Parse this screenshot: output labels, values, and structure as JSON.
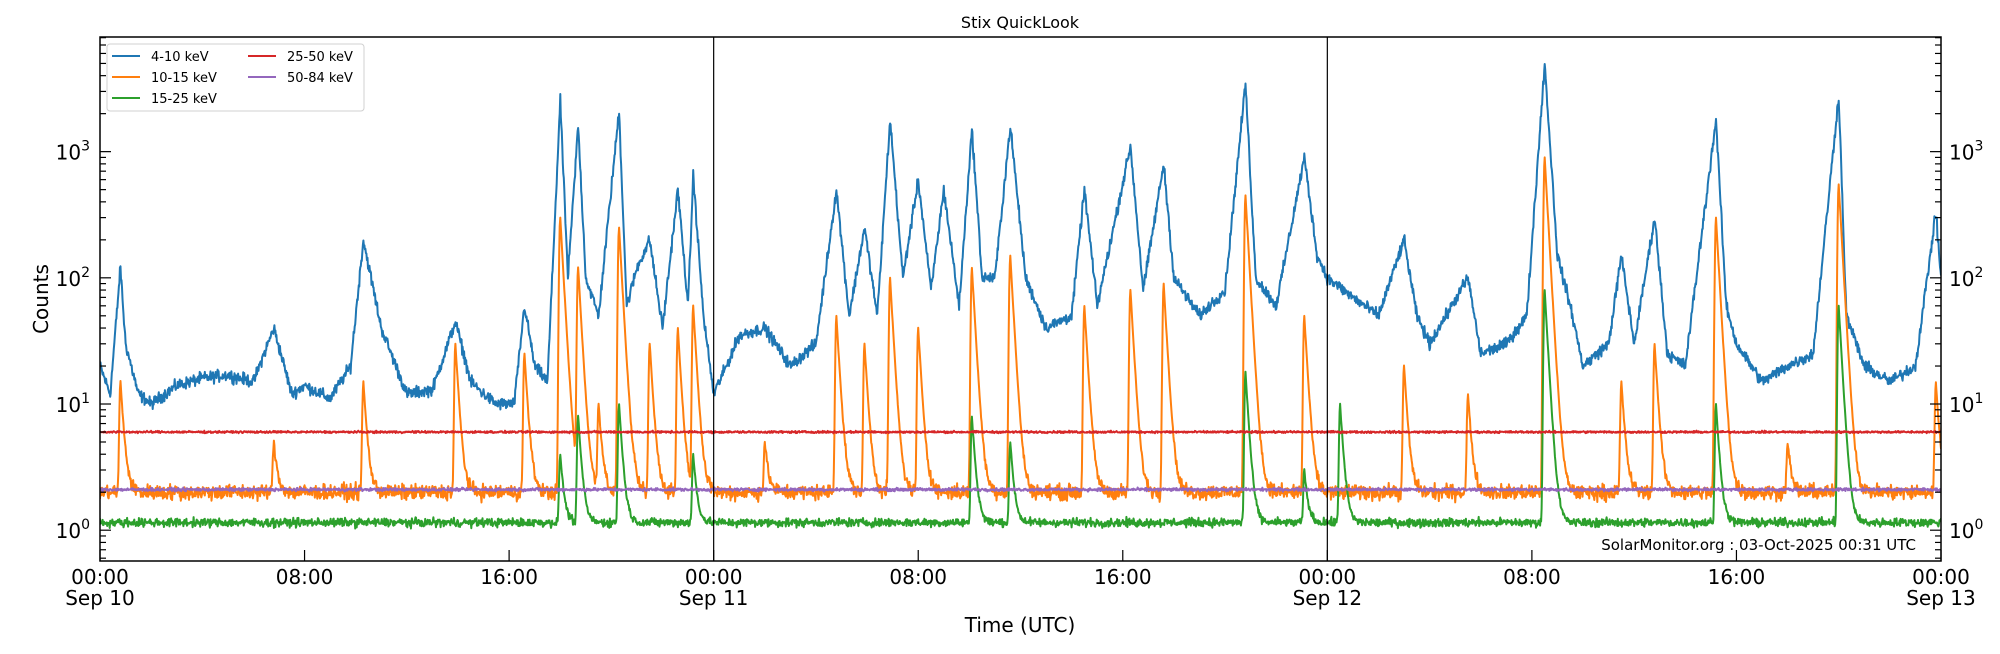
{
  "chart_data": {
    "type": "line",
    "title": "Stix QuickLook",
    "xlabel": "Time (UTC)",
    "ylabel": "Counts",
    "yscale": "log",
    "ylim": [
      0.57,
      8100
    ],
    "xlim_hours": [
      0,
      72
    ],
    "grid": false,
    "legend_placement": "top-left",
    "x_ticks": [
      {
        "hour": 0,
        "label": "00:00",
        "date": "Sep 10"
      },
      {
        "hour": 8,
        "label": "08:00",
        "date": ""
      },
      {
        "hour": 16,
        "label": "16:00",
        "date": ""
      },
      {
        "hour": 24,
        "label": "00:00",
        "date": "Sep 11"
      },
      {
        "hour": 32,
        "label": "08:00",
        "date": ""
      },
      {
        "hour": 40,
        "label": "16:00",
        "date": ""
      },
      {
        "hour": 48,
        "label": "00:00",
        "date": "Sep 12"
      },
      {
        "hour": 56,
        "label": "08:00",
        "date": ""
      },
      {
        "hour": 64,
        "label": "16:00",
        "date": ""
      },
      {
        "hour": 72,
        "label": "00:00",
        "date": "Sep 13"
      }
    ],
    "y_ticks": [
      {
        "value": 1,
        "base": "10",
        "exp": "0"
      },
      {
        "value": 10,
        "base": "10",
        "exp": "1"
      },
      {
        "value": 100,
        "base": "10",
        "exp": "2"
      },
      {
        "value": 1000,
        "base": "10",
        "exp": "3"
      }
    ],
    "day_boundaries_hours": [
      24,
      48
    ],
    "annotation": "SolarMonitor.org : 03-Oct-2025 00:31 UTC",
    "series": [
      {
        "name": "4-10 keV",
        "color": "#1f77b4",
        "points": [
          [
            0,
            20
          ],
          [
            0.4,
            12
          ],
          [
            0.8,
            120
          ],
          [
            1.0,
            30
          ],
          [
            1.5,
            12
          ],
          [
            2,
            10
          ],
          [
            3,
            14
          ],
          [
            4,
            16
          ],
          [
            5,
            17
          ],
          [
            6,
            15
          ],
          [
            6.8,
            40
          ],
          [
            7.5,
            12
          ],
          [
            8,
            14
          ],
          [
            9,
            11
          ],
          [
            9.8,
            20
          ],
          [
            10.3,
            200
          ],
          [
            11,
            40
          ],
          [
            12,
            12
          ],
          [
            13,
            13
          ],
          [
            13.9,
            45
          ],
          [
            14.5,
            15
          ],
          [
            15,
            12
          ],
          [
            15.5,
            10
          ],
          [
            16.2,
            10
          ],
          [
            16.6,
            60
          ],
          [
            17,
            20
          ],
          [
            17.5,
            15
          ],
          [
            18.0,
            2500
          ],
          [
            18.3,
            100
          ],
          [
            18.7,
            1600
          ],
          [
            19,
            100
          ],
          [
            19.5,
            50
          ],
          [
            20.3,
            2100
          ],
          [
            20.6,
            60
          ],
          [
            21,
            120
          ],
          [
            21.5,
            200
          ],
          [
            22,
            40
          ],
          [
            22.6,
            500
          ],
          [
            23,
            60
          ],
          [
            23.2,
            650
          ],
          [
            23.6,
            50
          ],
          [
            24,
            12
          ],
          [
            24.5,
            20
          ],
          [
            25,
            35
          ],
          [
            26,
            40
          ],
          [
            27,
            20
          ],
          [
            28,
            30
          ],
          [
            28.8,
            500
          ],
          [
            29.3,
            50
          ],
          [
            29.9,
            250
          ],
          [
            30.4,
            50
          ],
          [
            30.9,
            1800
          ],
          [
            31.4,
            100
          ],
          [
            32,
            600
          ],
          [
            32.5,
            80
          ],
          [
            33,
            500
          ],
          [
            33.6,
            60
          ],
          [
            34.1,
            1500
          ],
          [
            34.5,
            100
          ],
          [
            35,
            100
          ],
          [
            35.6,
            1600
          ],
          [
            36.2,
            100
          ],
          [
            37,
            40
          ],
          [
            38,
            50
          ],
          [
            38.5,
            500
          ],
          [
            39,
            60
          ],
          [
            40.3,
            1100
          ],
          [
            40.8,
            80
          ],
          [
            41.6,
            800
          ],
          [
            42,
            100
          ],
          [
            43,
            50
          ],
          [
            44,
            80
          ],
          [
            44.8,
            3500
          ],
          [
            45.2,
            100
          ],
          [
            46,
            60
          ],
          [
            47.1,
            900
          ],
          [
            47.6,
            150
          ],
          [
            48,
            100
          ],
          [
            49,
            70
          ],
          [
            50,
            50
          ],
          [
            51,
            200
          ],
          [
            51.5,
            50
          ],
          [
            52,
            30
          ],
          [
            53.5,
            100
          ],
          [
            54,
            25
          ],
          [
            55,
            30
          ],
          [
            55.8,
            50
          ],
          [
            56.5,
            5000
          ],
          [
            57,
            150
          ],
          [
            57.5,
            60
          ],
          [
            58,
            20
          ],
          [
            59,
            30
          ],
          [
            59.5,
            150
          ],
          [
            60,
            30
          ],
          [
            60.8,
            300
          ],
          [
            61.3,
            25
          ],
          [
            62,
            20
          ],
          [
            63.2,
            1800
          ],
          [
            63.6,
            60
          ],
          [
            64,
            30
          ],
          [
            65,
            15
          ],
          [
            66,
            20
          ],
          [
            67,
            25
          ],
          [
            68,
            2800
          ],
          [
            68.3,
            50
          ],
          [
            69,
            20
          ],
          [
            70,
            15
          ],
          [
            71,
            20
          ],
          [
            71.8,
            330
          ],
          [
            72,
            100
          ]
        ]
      },
      {
        "name": "10-15 keV",
        "color": "#ff7f0e",
        "baseline": 2.0,
        "peaks": [
          [
            0.8,
            15
          ],
          [
            6.8,
            5
          ],
          [
            10.3,
            15
          ],
          [
            13.9,
            30
          ],
          [
            16.6,
            25
          ],
          [
            18,
            300
          ],
          [
            18.7,
            120
          ],
          [
            19.5,
            10
          ],
          [
            20.3,
            250
          ],
          [
            21.5,
            30
          ],
          [
            22.6,
            40
          ],
          [
            23.2,
            60
          ],
          [
            26,
            5
          ],
          [
            28.8,
            50
          ],
          [
            29.9,
            30
          ],
          [
            30.9,
            100
          ],
          [
            32,
            40
          ],
          [
            34.1,
            120
          ],
          [
            35.6,
            150
          ],
          [
            38.5,
            60
          ],
          [
            40.3,
            80
          ],
          [
            41.6,
            90
          ],
          [
            44.8,
            450
          ],
          [
            47.1,
            50
          ],
          [
            51,
            20
          ],
          [
            53.5,
            12
          ],
          [
            56.5,
            900
          ],
          [
            59.5,
            15
          ],
          [
            60.8,
            30
          ],
          [
            63.2,
            300
          ],
          [
            66,
            5
          ],
          [
            68,
            550
          ],
          [
            71.8,
            15
          ]
        ]
      },
      {
        "name": "15-25 keV",
        "color": "#2ca02c",
        "baseline": 1.15,
        "peaks": [
          [
            18,
            4
          ],
          [
            18.7,
            8
          ],
          [
            20.3,
            10
          ],
          [
            23.2,
            4
          ],
          [
            34.1,
            8
          ],
          [
            35.6,
            5
          ],
          [
            44.8,
            18
          ],
          [
            47.1,
            3
          ],
          [
            48.5,
            10
          ],
          [
            56.5,
            80
          ],
          [
            63.2,
            10
          ],
          [
            68,
            60
          ]
        ]
      },
      {
        "name": "25-50 keV",
        "color": "#d62728",
        "baseline": 6.0,
        "peaks": []
      },
      {
        "name": "50-84 keV",
        "color": "#9467bd",
        "baseline": 2.1,
        "peaks": []
      }
    ]
  }
}
